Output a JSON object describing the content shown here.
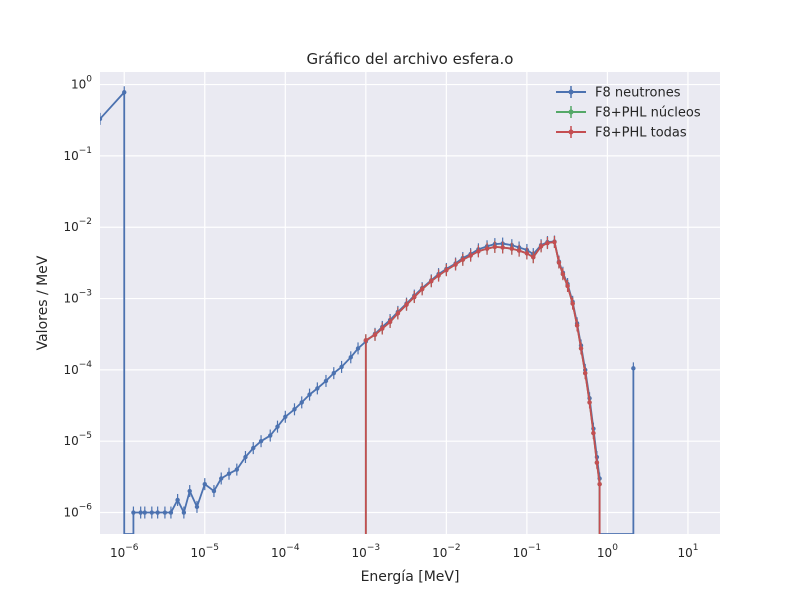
{
  "chart_data": {
    "type": "line",
    "title": "Gráfico del archivo esfera.o",
    "xlabel": "Energía [MeV]",
    "ylabel": "Valores / MeV",
    "xscale": "log",
    "yscale": "log",
    "xlim": [
      5e-07,
      25
    ],
    "ylim": [
      5e-07,
      1.5
    ],
    "grid": true,
    "legend_position": "top-right",
    "background_color": "#EAEAF2",
    "x_ticks": [
      {
        "value": 1e-06,
        "base": "10",
        "exp": "−6"
      },
      {
        "value": 1e-05,
        "base": "10",
        "exp": "−5"
      },
      {
        "value": 0.0001,
        "base": "10",
        "exp": "−4"
      },
      {
        "value": 0.001,
        "base": "10",
        "exp": "−3"
      },
      {
        "value": 0.01,
        "base": "10",
        "exp": "−2"
      },
      {
        "value": 0.1,
        "base": "10",
        "exp": "−1"
      },
      {
        "value": 1,
        "base": "10",
        "exp": "0"
      },
      {
        "value": 10,
        "base": "10",
        "exp": "1"
      }
    ],
    "y_ticks": [
      {
        "value": 1e-06,
        "base": "10",
        "exp": "−6"
      },
      {
        "value": 1e-05,
        "base": "10",
        "exp": "−5"
      },
      {
        "value": 0.0001,
        "base": "10",
        "exp": "−4"
      },
      {
        "value": 0.001,
        "base": "10",
        "exp": "−3"
      },
      {
        "value": 0.01,
        "base": "10",
        "exp": "−2"
      },
      {
        "value": 0.1,
        "base": "10",
        "exp": "−1"
      },
      {
        "value": 1,
        "base": "10",
        "exp": "0"
      }
    ],
    "series": [
      {
        "name": "F8 neutrones",
        "color": "#4C72B0",
        "points": [
          [
            5e-07,
            0.33
          ],
          [
            1e-06,
            0.78
          ],
          [
            1e-06,
            5e-07
          ],
          [
            1.3e-06,
            5e-07
          ],
          [
            1.3e-06,
            1e-06
          ],
          [
            1.6e-06,
            1e-06
          ],
          [
            1.8e-06,
            1e-06
          ],
          [
            2.2e-06,
            1e-06
          ],
          [
            2.6e-06,
            1e-06
          ],
          [
            3.2e-06,
            1e-06
          ],
          [
            3.8e-06,
            1e-06
          ],
          [
            4.6e-06,
            1.5e-06
          ],
          [
            5.5e-06,
            1e-06
          ],
          [
            6.5e-06,
            2e-06
          ],
          [
            8e-06,
            1.2e-06
          ],
          [
            1e-05,
            2.5e-06
          ],
          [
            1.3e-05,
            2e-06
          ],
          [
            1.6e-05,
            3e-06
          ],
          [
            2e-05,
            3.5e-06
          ],
          [
            2.5e-05,
            4e-06
          ],
          [
            3.2e-05,
            6e-06
          ],
          [
            4e-05,
            8e-06
          ],
          [
            5e-05,
            1e-05
          ],
          [
            6.5e-05,
            1.2e-05
          ],
          [
            8e-05,
            1.6e-05
          ],
          [
            0.0001,
            2.2e-05
          ],
          [
            0.00013,
            2.8e-05
          ],
          [
            0.00016,
            3.5e-05
          ],
          [
            0.0002,
            4.5e-05
          ],
          [
            0.00025,
            5.5e-05
          ],
          [
            0.00032,
            7e-05
          ],
          [
            0.0004,
            9e-05
          ],
          [
            0.0005,
            0.00011
          ],
          [
            0.00065,
            0.00015
          ],
          [
            0.0008,
            0.0002
          ],
          [
            0.001,
            0.00025
          ],
          [
            0.0013,
            0.00032
          ],
          [
            0.0016,
            0.0004
          ],
          [
            0.002,
            0.0005
          ],
          [
            0.0025,
            0.00065
          ],
          [
            0.0032,
            0.00085
          ],
          [
            0.004,
            0.0011
          ],
          [
            0.005,
            0.0014
          ],
          [
            0.0065,
            0.0018
          ],
          [
            0.008,
            0.0022
          ],
          [
            0.01,
            0.0026
          ],
          [
            0.013,
            0.0031
          ],
          [
            0.016,
            0.0037
          ],
          [
            0.02,
            0.0042
          ],
          [
            0.025,
            0.0049
          ],
          [
            0.032,
            0.0054
          ],
          [
            0.04,
            0.0058
          ],
          [
            0.05,
            0.0059
          ],
          [
            0.065,
            0.0056
          ],
          [
            0.08,
            0.0052
          ],
          [
            0.1,
            0.0048
          ],
          [
            0.12,
            0.0042
          ],
          [
            0.15,
            0.0056
          ],
          [
            0.18,
            0.0062
          ],
          [
            0.22,
            0.0063
          ],
          [
            0.25,
            0.0033
          ],
          [
            0.28,
            0.0023
          ],
          [
            0.32,
            0.0016
          ],
          [
            0.37,
            0.0009
          ],
          [
            0.42,
            0.00045
          ],
          [
            0.47,
            0.00022
          ],
          [
            0.53,
            0.0001
          ],
          [
            0.6,
            4e-05
          ],
          [
            0.67,
            1.5e-05
          ],
          [
            0.74,
            6e-06
          ],
          [
            0.8,
            3e-06
          ],
          [
            0.8,
            5e-07
          ],
          [
            2.1,
            5e-07
          ],
          [
            2.1,
            0.000105
          ],
          [
            2.1,
            5e-07
          ]
        ]
      },
      {
        "name": "F8+PHL núcleos",
        "color": "#55A868",
        "points": [
          [
            0.001,
            5e-07
          ],
          [
            0.001,
            0.00026
          ],
          [
            0.0013,
            0.00031
          ],
          [
            0.0016,
            0.00038
          ],
          [
            0.002,
            0.00047
          ],
          [
            0.0025,
            0.00062
          ],
          [
            0.0032,
            0.00082
          ],
          [
            0.004,
            0.00105
          ],
          [
            0.005,
            0.00135
          ],
          [
            0.0065,
            0.00175
          ],
          [
            0.008,
            0.0021
          ],
          [
            0.01,
            0.0025
          ],
          [
            0.013,
            0.003
          ],
          [
            0.016,
            0.0035
          ],
          [
            0.02,
            0.004
          ],
          [
            0.025,
            0.0046
          ],
          [
            0.032,
            0.005
          ],
          [
            0.04,
            0.0053
          ],
          [
            0.05,
            0.0052
          ],
          [
            0.065,
            0.005
          ],
          [
            0.08,
            0.0047
          ],
          [
            0.1,
            0.0043
          ],
          [
            0.12,
            0.0038
          ],
          [
            0.15,
            0.0054
          ],
          [
            0.18,
            0.006
          ],
          [
            0.22,
            0.0062
          ],
          [
            0.25,
            0.0032
          ],
          [
            0.28,
            0.0022
          ],
          [
            0.32,
            0.0015
          ],
          [
            0.37,
            0.00085
          ],
          [
            0.42,
            0.00042
          ],
          [
            0.47,
            0.0002
          ],
          [
            0.53,
            9e-05
          ],
          [
            0.6,
            3.5e-05
          ],
          [
            0.67,
            1.3e-05
          ],
          [
            0.74,
            5e-06
          ],
          [
            0.8,
            2.5e-06
          ],
          [
            0.8,
            5e-07
          ]
        ]
      },
      {
        "name": "F8+PHL todas",
        "color": "#C44E52",
        "points": [
          [
            0.001,
            5e-07
          ],
          [
            0.001,
            0.00026
          ],
          [
            0.0013,
            0.00031
          ],
          [
            0.0016,
            0.00038
          ],
          [
            0.002,
            0.00047
          ],
          [
            0.0025,
            0.00062
          ],
          [
            0.0032,
            0.00082
          ],
          [
            0.004,
            0.00105
          ],
          [
            0.005,
            0.00135
          ],
          [
            0.0065,
            0.00175
          ],
          [
            0.008,
            0.0021
          ],
          [
            0.01,
            0.0025
          ],
          [
            0.013,
            0.003
          ],
          [
            0.016,
            0.0035
          ],
          [
            0.02,
            0.004
          ],
          [
            0.025,
            0.0046
          ],
          [
            0.032,
            0.005
          ],
          [
            0.04,
            0.0053
          ],
          [
            0.05,
            0.0052
          ],
          [
            0.065,
            0.005
          ],
          [
            0.08,
            0.0047
          ],
          [
            0.1,
            0.0043
          ],
          [
            0.12,
            0.0038
          ],
          [
            0.15,
            0.0054
          ],
          [
            0.18,
            0.006
          ],
          [
            0.22,
            0.0062
          ],
          [
            0.25,
            0.0032
          ],
          [
            0.28,
            0.0022
          ],
          [
            0.32,
            0.0015
          ],
          [
            0.37,
            0.00085
          ],
          [
            0.42,
            0.00042
          ],
          [
            0.47,
            0.0002
          ],
          [
            0.53,
            9e-05
          ],
          [
            0.6,
            3.5e-05
          ],
          [
            0.67,
            1.3e-05
          ],
          [
            0.74,
            5e-06
          ],
          [
            0.8,
            2.5e-06
          ],
          [
            0.8,
            5e-07
          ]
        ]
      }
    ]
  }
}
